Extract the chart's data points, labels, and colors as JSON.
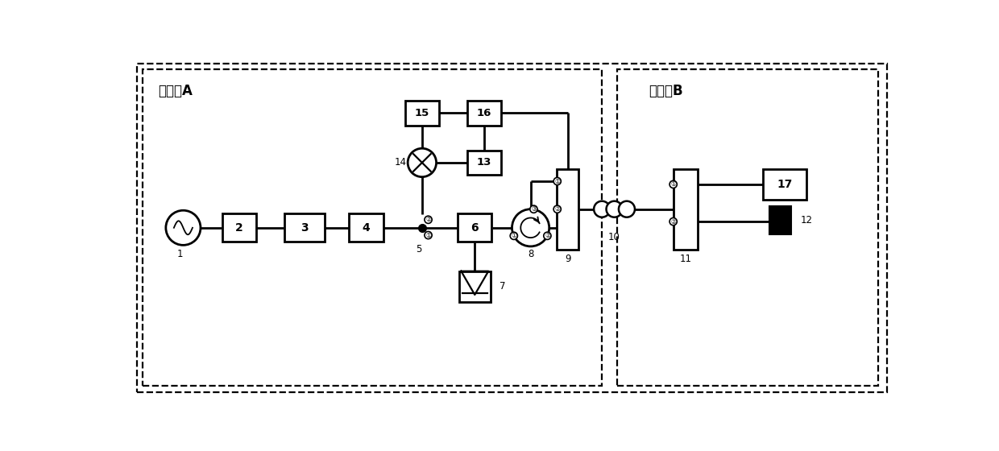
{
  "bg_color": "#ffffff",
  "box_color": "#ffffff",
  "box_edge": "#000000",
  "line_color": "#000000",
  "title_A": "发送端A",
  "title_B": "接收端B",
  "lw": 2.0,
  "dash_lw": 1.6
}
